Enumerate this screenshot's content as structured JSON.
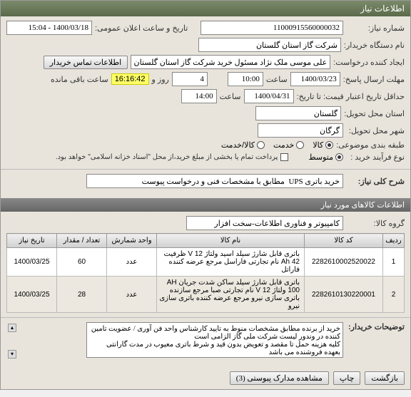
{
  "panel": {
    "title": "اطلاعات نیاز"
  },
  "fields": {
    "need_no_lbl": "شماره نیاز:",
    "need_no": "11000915560000032",
    "pub_date_lbl": "تاریخ و ساعت اعلان عمومی:",
    "pub_date": "1400/03/18 - 15:04",
    "buyer_org_lbl": "نام دستگاه خریدار:",
    "buyer_org": "شرکت گاز استان گلستان",
    "creator_lbl": "ایجاد کننده درخواست:",
    "creator": "علی موسی ملک نژاد مسئول خرید شرکت گاز استان گلستان",
    "contact_btn": "اطلاعات تماس خریدار",
    "deadline_lbl": "مهلت ارسال پاسخ:",
    "deadline_date": "1400/03/23",
    "hour_lbl": "ساعت",
    "deadline_time": "10:00",
    "days": "4",
    "day_lbl": "روز و",
    "remaining": "16:16:42",
    "remain_lbl": "ساعت باقی مانده",
    "validity_lbl": "حداقل تاریخ اعتبار قیمت: تا تاریخ:",
    "validity_date": "1400/04/31",
    "validity_time": "14:00",
    "province_lbl": "استان محل تحویل:",
    "province": "گلستان",
    "city_lbl": "شهر محل تحویل:",
    "city": "گرگان",
    "budget_lbl": "طبقه بندی موضوعی:",
    "goods": "کالا",
    "service": "خدمت",
    "goods_service": "کالا/خدمت",
    "process_lbl": "نوع فرآیند خرید :",
    "medium": "متوسط",
    "partial_pay": "پرداخت تمام یا بخشی از مبلغ خرید،از محل \"اسناد خزانه اسلامی\" خواهد بود."
  },
  "desc": {
    "lbl": "شرح کلی نیاز:",
    "value": "خرید باتری UPS  مطابق با مشخصات فنی و درخواست پیوست"
  },
  "items_header": "اطلاعات کالاهای مورد نیاز",
  "group": {
    "lbl": "گروه کالا:",
    "value": "کامپیوتر و فناوری اطلاعات-سخت افزار"
  },
  "table": {
    "cols": [
      "ردیف",
      "کد کالا",
      "نام کالا",
      "واحد شمارش",
      "تعداد / مقدار",
      "تاریخ نیاز"
    ],
    "rows": [
      [
        "1",
        "2282610002520022",
        "باتری قابل شارژ سیلد اسید ولتاژ V 12 ظرفیت Ah 42 نام تجارتی فاراسل مرجع عرضه کننده فاراتل",
        "عدد",
        "60",
        "1400/03/25"
      ],
      [
        "2",
        "2282610130220001",
        "باتری قابل شارژ سیلد ساکن شدت جریان AH 100 ولتاژ V 12 نام تجارتی صبا مرجع سازنده باتری سازی نیرو مرجع عرضه کننده باتری سازی نیرو",
        "عدد",
        "28",
        "1400/03/25"
      ]
    ]
  },
  "buyer_notes": {
    "lbl": "توضیحات خریدار:",
    "text": "خرید از برنده مطابق مشخصات منوط به تایید کارشناس واحد فن آوری / عضویت تامین کننده در وندور لیست شرکت ملی گاز الزامی است\nکلیه هزینه حمل تا مقصد و تعویض بدون قید و شرط باتری معیوب در مدت گارانتی بعهده فروشنده می باشد"
  },
  "footer": {
    "back": "بازگشت",
    "print": "چاپ",
    "attachments": "مشاهده مدارک پیوستی (3)"
  },
  "colors": {
    "header_bg": "#6a7a5a",
    "highlight": "#ffff66"
  }
}
